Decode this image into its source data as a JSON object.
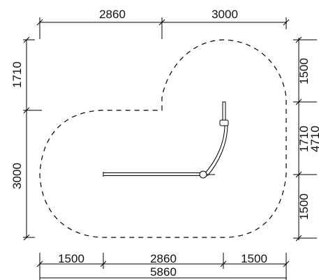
{
  "dimensions": {
    "top_left": "2860",
    "top_right": "3000",
    "left_upper": "1710",
    "left_lower": "3000",
    "right_top": "1500",
    "right_middle": "1710",
    "right_overall": "4710",
    "right_bottom": "1500",
    "bottom_left": "1500",
    "bottom_middle": "2860",
    "bottom_right": "1500",
    "bottom_overall": "5860"
  }
}
